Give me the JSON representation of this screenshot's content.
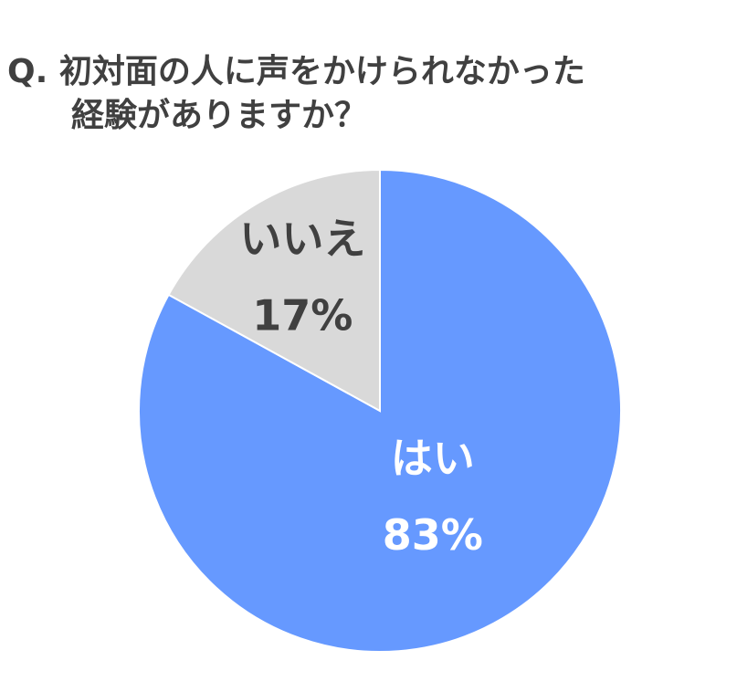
{
  "chart_data": {
    "type": "pie",
    "title": [
      "Q. 初対面の人に声をかけられなかった",
      "経験がありますか？"
    ],
    "categories": [
      "はい",
      "いいえ"
    ],
    "values": [
      83,
      17
    ],
    "value_labels": [
      "83%",
      "17%"
    ],
    "colors": [
      "#6699ff",
      "#d9d9d9"
    ]
  }
}
